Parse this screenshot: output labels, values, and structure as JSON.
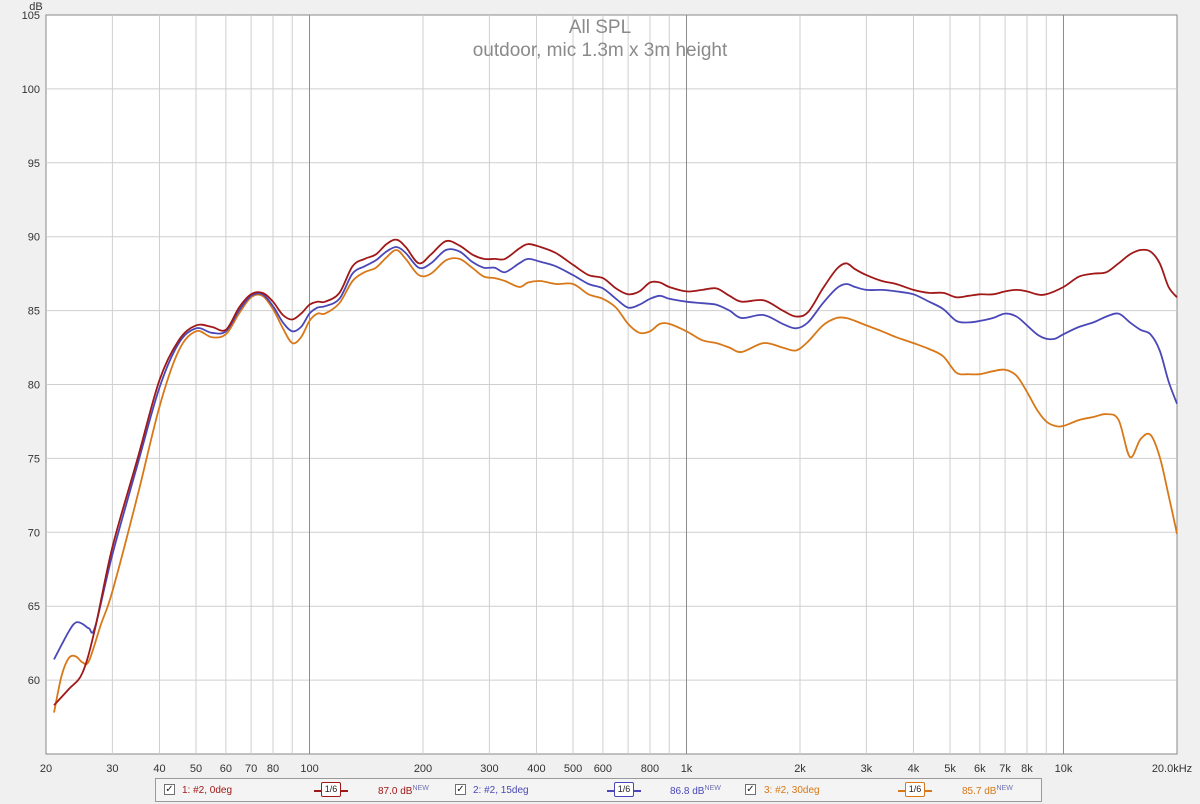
{
  "chart_data": {
    "type": "line",
    "title": "All SPL",
    "subtitle": "outdoor, mic 1.3m x 3m height",
    "ylabel": "dB",
    "x_scale": "log",
    "xlim": [
      20,
      20000
    ],
    "ylim": [
      55,
      105
    ],
    "yticks": [
      60,
      65,
      70,
      75,
      80,
      85,
      90,
      95,
      100,
      105
    ],
    "xticks": [
      {
        "v": 20,
        "label": "20"
      },
      {
        "v": 30,
        "label": "30"
      },
      {
        "v": 40,
        "label": "40"
      },
      {
        "v": 50,
        "label": "50"
      },
      {
        "v": 60,
        "label": "60"
      },
      {
        "v": 70,
        "label": "70"
      },
      {
        "v": 80,
        "label": "80"
      },
      {
        "v": 100,
        "label": "100"
      },
      {
        "v": 200,
        "label": "200"
      },
      {
        "v": 300,
        "label": "300"
      },
      {
        "v": 400,
        "label": "400"
      },
      {
        "v": 500,
        "label": "500"
      },
      {
        "v": 600,
        "label": "600"
      },
      {
        "v": 800,
        "label": "800"
      },
      {
        "v": 1000,
        "label": "1k"
      },
      {
        "v": 2000,
        "label": "2k"
      },
      {
        "v": 3000,
        "label": "3k"
      },
      {
        "v": 4000,
        "label": "4k"
      },
      {
        "v": 5000,
        "label": "5k"
      },
      {
        "v": 6000,
        "label": "6k"
      },
      {
        "v": 7000,
        "label": "7k"
      },
      {
        "v": 8000,
        "label": "8k"
      },
      {
        "v": 10000,
        "label": "10k"
      },
      {
        "v": 20000,
        "label": "20.0kHz"
      }
    ],
    "grid": true,
    "series": [
      {
        "name": "1: #2, 0deg",
        "color": "#a01818",
        "smoothing": "1/6",
        "level": "87.0 dB",
        "badge": "NEW",
        "points": [
          [
            21,
            58.3
          ],
          [
            23,
            59.4
          ],
          [
            25,
            60.5
          ],
          [
            27,
            63.5
          ],
          [
            30,
            69
          ],
          [
            35,
            75
          ],
          [
            40,
            80.3
          ],
          [
            45,
            83
          ],
          [
            50,
            84
          ],
          [
            55,
            83.9
          ],
          [
            60,
            83.7
          ],
          [
            65,
            85.2
          ],
          [
            70,
            86.1
          ],
          [
            75,
            86.2
          ],
          [
            80,
            85.6
          ],
          [
            85,
            84.7
          ],
          [
            90,
            84.4
          ],
          [
            95,
            84.8
          ],
          [
            100,
            85.4
          ],
          [
            105,
            85.6
          ],
          [
            110,
            85.6
          ],
          [
            120,
            86.2
          ],
          [
            130,
            88
          ],
          [
            140,
            88.5
          ],
          [
            150,
            88.8
          ],
          [
            160,
            89.5
          ],
          [
            170,
            89.8
          ],
          [
            180,
            89.3
          ],
          [
            195,
            88.2
          ],
          [
            210,
            88.8
          ],
          [
            230,
            89.7
          ],
          [
            250,
            89.4
          ],
          [
            270,
            88.8
          ],
          [
            290,
            88.5
          ],
          [
            310,
            88.5
          ],
          [
            330,
            88.5
          ],
          [
            360,
            89.2
          ],
          [
            380,
            89.5
          ],
          [
            410,
            89.3
          ],
          [
            450,
            88.9
          ],
          [
            500,
            88.1
          ],
          [
            550,
            87.4
          ],
          [
            600,
            87.2
          ],
          [
            650,
            86.5
          ],
          [
            700,
            86.1
          ],
          [
            750,
            86.3
          ],
          [
            800,
            86.9
          ],
          [
            850,
            86.9
          ],
          [
            900,
            86.6
          ],
          [
            1000,
            86.3
          ],
          [
            1100,
            86.4
          ],
          [
            1200,
            86.5
          ],
          [
            1300,
            86
          ],
          [
            1400,
            85.6
          ],
          [
            1600,
            85.7
          ],
          [
            1800,
            85
          ],
          [
            1950,
            84.6
          ],
          [
            2100,
            84.9
          ],
          [
            2300,
            86.5
          ],
          [
            2500,
            87.8
          ],
          [
            2650,
            88.2
          ],
          [
            2800,
            87.8
          ],
          [
            3000,
            87.4
          ],
          [
            3300,
            87
          ],
          [
            3600,
            86.8
          ],
          [
            4000,
            86.4
          ],
          [
            4400,
            86.2
          ],
          [
            4800,
            86.2
          ],
          [
            5200,
            85.9
          ],
          [
            5600,
            86
          ],
          [
            6000,
            86.1
          ],
          [
            6500,
            86.1
          ],
          [
            7000,
            86.3
          ],
          [
            7500,
            86.4
          ],
          [
            8000,
            86.3
          ],
          [
            8500,
            86.1
          ],
          [
            9000,
            86.1
          ],
          [
            10000,
            86.6
          ],
          [
            11000,
            87.3
          ],
          [
            12000,
            87.5
          ],
          [
            13000,
            87.6
          ],
          [
            14000,
            88.2
          ],
          [
            15000,
            88.8
          ],
          [
            16000,
            89.1
          ],
          [
            17000,
            89
          ],
          [
            18000,
            88.2
          ],
          [
            19000,
            86.6
          ],
          [
            20000,
            85.9
          ]
        ]
      },
      {
        "name": "2: #2, 15deg",
        "color": "#4a48b8",
        "smoothing": "1/6",
        "level": "86.8 dB",
        "badge": "NEW",
        "points": [
          [
            21,
            61.4
          ],
          [
            23,
            63.3
          ],
          [
            24,
            63.9
          ],
          [
            25,
            63.8
          ],
          [
            26,
            63.5
          ],
          [
            27,
            63.6
          ],
          [
            30,
            68.5
          ],
          [
            35,
            74.6
          ],
          [
            40,
            79.8
          ],
          [
            45,
            82.8
          ],
          [
            50,
            83.8
          ],
          [
            55,
            83.5
          ],
          [
            60,
            83.6
          ],
          [
            65,
            85
          ],
          [
            70,
            86
          ],
          [
            75,
            86.1
          ],
          [
            80,
            85.3
          ],
          [
            85,
            84.2
          ],
          [
            90,
            83.6
          ],
          [
            95,
            83.9
          ],
          [
            100,
            84.8
          ],
          [
            105,
            85.2
          ],
          [
            110,
            85.3
          ],
          [
            120,
            85.8
          ],
          [
            130,
            87.5
          ],
          [
            140,
            88
          ],
          [
            150,
            88.4
          ],
          [
            160,
            89
          ],
          [
            170,
            89.3
          ],
          [
            180,
            88.9
          ],
          [
            195,
            87.9
          ],
          [
            210,
            88.2
          ],
          [
            230,
            89.1
          ],
          [
            250,
            89
          ],
          [
            270,
            88.3
          ],
          [
            290,
            87.9
          ],
          [
            310,
            87.9
          ],
          [
            330,
            87.6
          ],
          [
            360,
            88.2
          ],
          [
            380,
            88.5
          ],
          [
            410,
            88.3
          ],
          [
            450,
            88
          ],
          [
            500,
            87.4
          ],
          [
            550,
            86.8
          ],
          [
            600,
            86.5
          ],
          [
            650,
            85.8
          ],
          [
            700,
            85.2
          ],
          [
            750,
            85.4
          ],
          [
            800,
            85.8
          ],
          [
            850,
            86
          ],
          [
            900,
            85.8
          ],
          [
            1000,
            85.6
          ],
          [
            1100,
            85.5
          ],
          [
            1200,
            85.4
          ],
          [
            1300,
            85
          ],
          [
            1400,
            84.5
          ],
          [
            1600,
            84.7
          ],
          [
            1800,
            84.1
          ],
          [
            1950,
            83.8
          ],
          [
            2100,
            84.2
          ],
          [
            2300,
            85.5
          ],
          [
            2500,
            86.5
          ],
          [
            2650,
            86.8
          ],
          [
            2800,
            86.6
          ],
          [
            3000,
            86.4
          ],
          [
            3300,
            86.4
          ],
          [
            3600,
            86.3
          ],
          [
            4000,
            86.1
          ],
          [
            4400,
            85.6
          ],
          [
            4800,
            85.1
          ],
          [
            5200,
            84.3
          ],
          [
            5600,
            84.2
          ],
          [
            6000,
            84.3
          ],
          [
            6500,
            84.5
          ],
          [
            7000,
            84.8
          ],
          [
            7500,
            84.6
          ],
          [
            8000,
            84
          ],
          [
            8500,
            83.4
          ],
          [
            9000,
            83.1
          ],
          [
            9500,
            83.1
          ],
          [
            10000,
            83.4
          ],
          [
            11000,
            83.9
          ],
          [
            12000,
            84.2
          ],
          [
            13000,
            84.6
          ],
          [
            14000,
            84.8
          ],
          [
            15000,
            84.2
          ],
          [
            16000,
            83.7
          ],
          [
            17000,
            83.4
          ],
          [
            18000,
            82.3
          ],
          [
            19000,
            80.2
          ],
          [
            20000,
            78.7
          ]
        ]
      },
      {
        "name": "3: #2, 30deg",
        "color": "#d87818",
        "smoothing": "1/6",
        "level": "85.7 dB",
        "badge": "NEW",
        "points": [
          [
            21,
            57.8
          ],
          [
            22,
            60.3
          ],
          [
            23,
            61.5
          ],
          [
            24,
            61.6
          ],
          [
            25,
            61.2
          ],
          [
            26,
            61.3
          ],
          [
            28,
            63.8
          ],
          [
            30,
            66
          ],
          [
            35,
            72.5
          ],
          [
            40,
            78.5
          ],
          [
            45,
            82.3
          ],
          [
            50,
            83.6
          ],
          [
            55,
            83.2
          ],
          [
            60,
            83.4
          ],
          [
            65,
            84.8
          ],
          [
            70,
            85.9
          ],
          [
            75,
            86
          ],
          [
            80,
            85.1
          ],
          [
            85,
            83.8
          ],
          [
            90,
            82.8
          ],
          [
            95,
            83.2
          ],
          [
            100,
            84.3
          ],
          [
            105,
            84.8
          ],
          [
            110,
            84.8
          ],
          [
            120,
            85.5
          ],
          [
            130,
            87
          ],
          [
            140,
            87.6
          ],
          [
            150,
            87.9
          ],
          [
            160,
            88.6
          ],
          [
            170,
            89.1
          ],
          [
            180,
            88.5
          ],
          [
            195,
            87.4
          ],
          [
            210,
            87.5
          ],
          [
            230,
            88.4
          ],
          [
            250,
            88.5
          ],
          [
            270,
            87.9
          ],
          [
            290,
            87.3
          ],
          [
            310,
            87.2
          ],
          [
            330,
            87
          ],
          [
            360,
            86.6
          ],
          [
            380,
            86.9
          ],
          [
            410,
            87
          ],
          [
            450,
            86.8
          ],
          [
            500,
            86.8
          ],
          [
            550,
            86.1
          ],
          [
            600,
            85.8
          ],
          [
            650,
            85.2
          ],
          [
            700,
            84.1
          ],
          [
            750,
            83.5
          ],
          [
            800,
            83.6
          ],
          [
            850,
            84.1
          ],
          [
            900,
            84.1
          ],
          [
            1000,
            83.6
          ],
          [
            1100,
            83
          ],
          [
            1200,
            82.8
          ],
          [
            1300,
            82.5
          ],
          [
            1400,
            82.2
          ],
          [
            1600,
            82.8
          ],
          [
            1800,
            82.5
          ],
          [
            1950,
            82.3
          ],
          [
            2100,
            82.9
          ],
          [
            2300,
            84
          ],
          [
            2500,
            84.5
          ],
          [
            2650,
            84.5
          ],
          [
            2800,
            84.3
          ],
          [
            3000,
            84
          ],
          [
            3300,
            83.6
          ],
          [
            3600,
            83.2
          ],
          [
            4000,
            82.8
          ],
          [
            4400,
            82.4
          ],
          [
            4800,
            81.9
          ],
          [
            5200,
            80.8
          ],
          [
            5600,
            80.7
          ],
          [
            6000,
            80.7
          ],
          [
            6500,
            80.9
          ],
          [
            7000,
            81
          ],
          [
            7500,
            80.6
          ],
          [
            8000,
            79.5
          ],
          [
            8500,
            78.3
          ],
          [
            9000,
            77.5
          ],
          [
            9500,
            77.2
          ],
          [
            10000,
            77.2
          ],
          [
            11000,
            77.6
          ],
          [
            12000,
            77.8
          ],
          [
            13000,
            78
          ],
          [
            14000,
            77.6
          ],
          [
            15000,
            75.1
          ],
          [
            16000,
            76.3
          ],
          [
            17000,
            76.6
          ],
          [
            18000,
            75.1
          ],
          [
            19000,
            72.5
          ],
          [
            20000,
            69.9
          ]
        ]
      }
    ]
  }
}
